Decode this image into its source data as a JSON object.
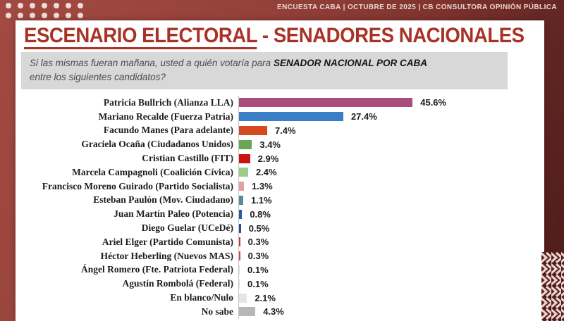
{
  "topbar": {
    "text": "ENCUESTA CABA | OCTUBRE DE 2025 | CB CONSULTORA OPINIÓN PÚBLICA"
  },
  "title": {
    "part1": "ESCENARIO ELECTORAL",
    "separator": " - ",
    "part2": "SENADORES NACIONALES"
  },
  "question": {
    "pre": "Si las mismas fueran mañana, usted a quién votaría para ",
    "highlight": "SENADOR NACIONAL POR CABA",
    "post": "entre los siguientes candidatos?"
  },
  "colors": {
    "background_top": "#a24a42",
    "background_bottom": "#4b1b1a",
    "card": "#ffffff",
    "title_red": "#a93226",
    "question_bg": "#d8d8d8",
    "axis_line": "#c6c6c6",
    "topbar_text": "#eed6d1",
    "dots": "#f2dcd8",
    "zigzag_bg": "#4f1d1b",
    "zigzag_stroke": "#ecd2cf"
  },
  "chart_data": {
    "type": "bar",
    "orientation": "horizontal",
    "title": "ESCENARIO ELECTORAL - SENADORES NACIONALES",
    "xlabel": "",
    "ylabel": "",
    "xlim": [
      0,
      50
    ],
    "grid": false,
    "legend": "none",
    "categories": [
      "Patricia Bullrich (Alianza LLA)",
      "Mariano Recalde (Fuerza Patria)",
      "Facundo Manes (Para adelante)",
      "Graciela Ocaña (Ciudadanos Unidos)",
      "Cristian Castillo (FIT)",
      "Marcela Campagnoli (Coalición Cívica)",
      "Francisco Moreno Guirado (Partido Socialista)",
      "Esteban Paulón (Mov. Ciudadano)",
      "Juan Martín Paleo (Potencia)",
      "Diego Guelar (UCeDé)",
      "Ariel Elger (Partido Comunista)",
      "Héctor Heberling (Nuevos MAS)",
      "Ángel Romero (Fte. Patriota Federal)",
      "Agustín Rombolá (Federal)",
      "En blanco/Nulo",
      "No sabe"
    ],
    "values": [
      45.6,
      27.4,
      7.4,
      3.4,
      2.9,
      2.4,
      1.3,
      1.1,
      0.8,
      0.5,
      0.3,
      0.3,
      0.1,
      0.1,
      2.1,
      4.3
    ],
    "value_labels": [
      "45.6%",
      "27.4%",
      "7.4%",
      "3.4%",
      "2.9%",
      "2.4%",
      "1.3%",
      "1.1%",
      "0.8%",
      "0.5%",
      "0.3%",
      "0.3%",
      "0.1%",
      "0.1%",
      "2.1%",
      "4.3%"
    ],
    "bar_colors": [
      "#a84c7e",
      "#3c7ec6",
      "#d4491f",
      "#6aa655",
      "#cd1212",
      "#9ccb8b",
      "#e5a0a0",
      "#548c9c",
      "#2b59a8",
      "#2b4a9e",
      "#c03a2a",
      "#c84a3a",
      "#e3ddd2",
      "#e3e0da",
      "#e4e4e4",
      "#b7b7b7"
    ]
  }
}
